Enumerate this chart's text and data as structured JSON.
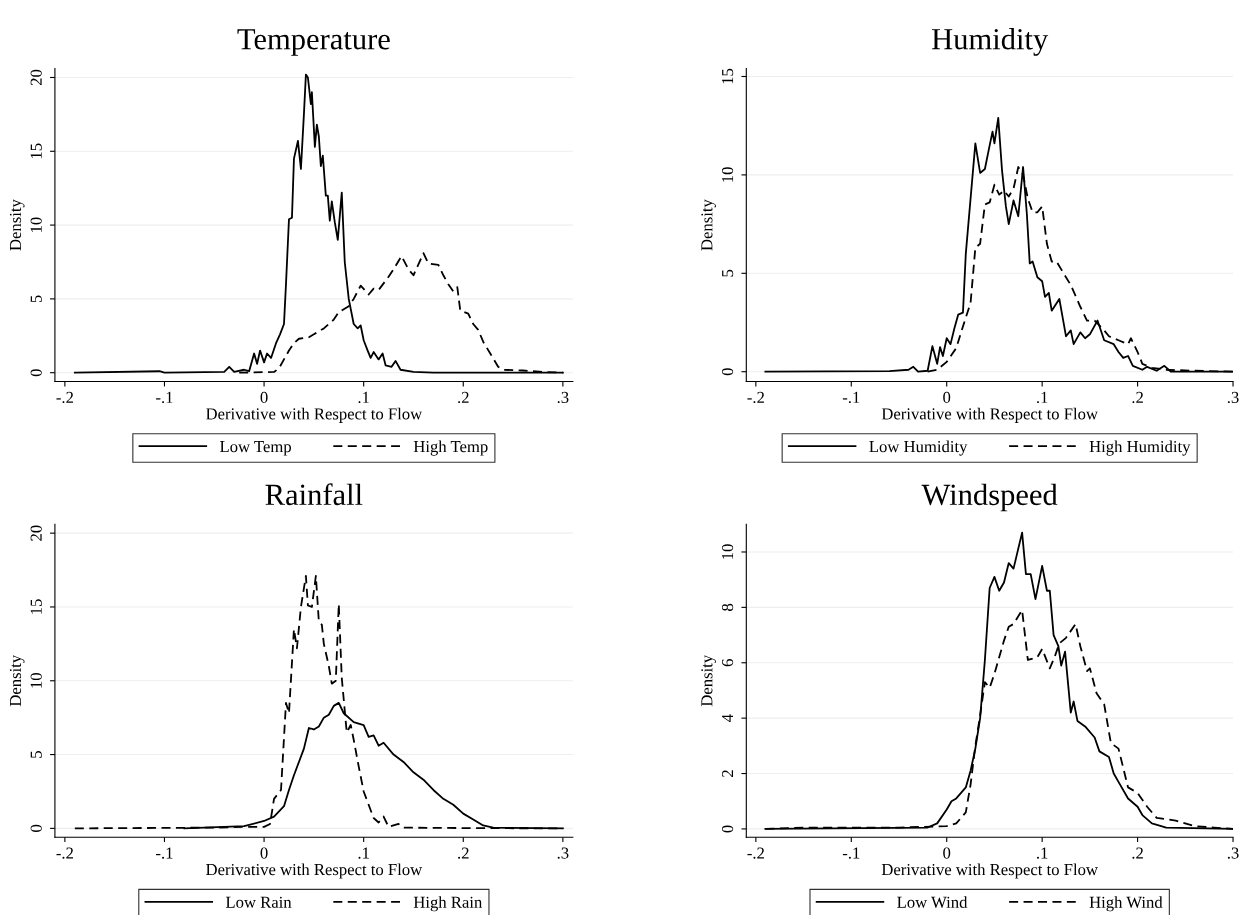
{
  "chart_data": [
    {
      "type": "line",
      "title": "Temperature",
      "xlabel": "Derivative with Respect to Flow",
      "ylabel": "Density",
      "xlim": [
        -0.21,
        0.31
      ],
      "ylim": [
        -0.6,
        20.6
      ],
      "xticks": [
        {
          "value": -0.2,
          "label": "-.2"
        },
        {
          "value": -0.1,
          "label": "-.1"
        },
        0,
        {
          "value": 0.1,
          "label": ".1"
        },
        {
          "value": 0.2,
          "label": ".2"
        },
        {
          "value": 0.3,
          "label": ".3"
        }
      ],
      "yticks": [
        0,
        5,
        10,
        15,
        20
      ],
      "grid": "y",
      "legend": "bottom",
      "series": [
        {
          "name": "Low Temp",
          "color": "#000000",
          "line_style": "solid",
          "x": [
            -0.19,
            -0.105,
            -0.1,
            -0.04,
            -0.035,
            -0.03,
            -0.02,
            -0.015,
            -0.01,
            -0.007,
            -0.004,
            0,
            0.003,
            0.007,
            0.012,
            0.016,
            0.02,
            0.022,
            0.025,
            0.028,
            0.03,
            0.034,
            0.037,
            0.04,
            0.042,
            0.044,
            0.047,
            0.048,
            0.051,
            0.053,
            0.055,
            0.057,
            0.059,
            0.062,
            0.064,
            0.066,
            0.068,
            0.071,
            0.074,
            0.078,
            0.081,
            0.085,
            0.09,
            0.094,
            0.097,
            0.1,
            0.104,
            0.107,
            0.11,
            0.115,
            0.119,
            0.122,
            0.128,
            0.132,
            0.137,
            0.15,
            0.17,
            0.3
          ],
          "values": [
            0,
            0.1,
            0,
            0.05,
            0.4,
            0.05,
            0.2,
            0.1,
            1.3,
            0.6,
            1.5,
            0.7,
            1.3,
            1.0,
            2.0,
            2.6,
            3.3,
            6,
            10.4,
            10.5,
            14.5,
            15.7,
            13.8,
            17.5,
            20.2,
            20.0,
            18.2,
            19,
            15.3,
            16.8,
            16,
            14,
            14.7,
            12,
            12,
            10.3,
            11.6,
            10.2,
            9,
            12.2,
            7.5,
            5,
            3.3,
            3.0,
            3.2,
            2.2,
            1.5,
            1.0,
            1.4,
            0.9,
            1.3,
            0.5,
            0.4,
            0.8,
            0.2,
            0.05,
            0,
            0
          ]
        },
        {
          "name": "High Temp",
          "color": "#000000",
          "line_style": "dashed",
          "x": [
            -0.025,
            0.01,
            0.015,
            0.025,
            0.03,
            0.035,
            0.045,
            0.05,
            0.06,
            0.07,
            0.075,
            0.085,
            0.09,
            0.097,
            0.105,
            0.11,
            0.115,
            0.125,
            0.13,
            0.138,
            0.145,
            0.15,
            0.16,
            0.165,
            0.175,
            0.18,
            0.185,
            0.19,
            0.194,
            0.197,
            0.205,
            0.21,
            0.215,
            0.22,
            0.228,
            0.235,
            0.24,
            0.26,
            0.28,
            0.3
          ],
          "values": [
            0,
            0.05,
            0.3,
            1.5,
            2.0,
            2.3,
            2.4,
            2.6,
            3.0,
            3.6,
            4.1,
            4.5,
            5,
            5.9,
            5.3,
            5.7,
            5.6,
            6.5,
            7.0,
            7.9,
            7.0,
            6.6,
            8.1,
            7.4,
            7.3,
            6.6,
            6.0,
            5.5,
            5.8,
            4.2,
            4.0,
            3.3,
            2.9,
            2.1,
            1.2,
            0.4,
            0.2,
            0.15,
            0.05,
            0
          ]
        }
      ]
    },
    {
      "type": "line",
      "title": "Humidity",
      "xlabel": "Derivative with Respect to Flow",
      "ylabel": "Density",
      "xlim": [
        -0.21,
        0.3
      ],
      "ylim": [
        -0.5,
        15.4
      ],
      "xticks": [
        {
          "value": -0.2,
          "label": "-.2"
        },
        {
          "value": -0.1,
          "label": "-.1"
        },
        0,
        {
          "value": 0.1,
          "label": ".1"
        },
        {
          "value": 0.2,
          "label": ".2"
        },
        {
          "value": 0.3,
          "label": ".3"
        }
      ],
      "yticks": [
        0,
        5,
        10,
        15
      ],
      "grid": "y",
      "legend": "bottom",
      "series": [
        {
          "name": "Low Humidity",
          "color": "#000000",
          "line_style": "solid",
          "x": [
            -0.19,
            -0.06,
            -0.04,
            -0.035,
            -0.03,
            -0.02,
            -0.015,
            -0.01,
            -0.007,
            -0.004,
            0,
            0.004,
            0.008,
            0.012,
            0.017,
            0.02,
            0.03,
            0.035,
            0.04,
            0.045,
            0.048,
            0.05,
            0.054,
            0.058,
            0.062,
            0.065,
            0.07,
            0.075,
            0.08,
            0.084,
            0.087,
            0.09,
            0.095,
            0.1,
            0.103,
            0.107,
            0.11,
            0.118,
            0.125,
            0.13,
            0.133,
            0.14,
            0.145,
            0.15,
            0.158,
            0.165,
            0.175,
            0.18,
            0.185,
            0.19,
            0.195,
            0.205,
            0.21,
            0.22,
            0.228,
            0.235,
            0.3
          ],
          "values": [
            0,
            0.03,
            0.1,
            0.25,
            0,
            0.05,
            1.3,
            0.4,
            1.25,
            0.8,
            1.7,
            1.4,
            2.2,
            2.9,
            3.0,
            6,
            11.6,
            10.1,
            10.3,
            11.5,
            12.2,
            11.6,
            12.9,
            10.2,
            8.4,
            7.5,
            8.7,
            7.9,
            10.4,
            8,
            5.5,
            5.6,
            4.8,
            4.6,
            3.8,
            4.0,
            3.1,
            3.7,
            1.8,
            2.1,
            1.4,
            2.0,
            1.7,
            1.9,
            2.6,
            1.6,
            1.4,
            1.0,
            0.7,
            0.8,
            0.3,
            0.1,
            0.25,
            0.05,
            0.3,
            0,
            0
          ]
        },
        {
          "name": "High Humidity",
          "color": "#000000",
          "line_style": "dashed",
          "x": [
            -0.02,
            -0.01,
            0,
            0.01,
            0.017,
            0.025,
            0.03,
            0.035,
            0.04,
            0.045,
            0.05,
            0.055,
            0.06,
            0.065,
            0.07,
            0.075,
            0.08,
            0.085,
            0.09,
            0.095,
            0.1,
            0.105,
            0.11,
            0.115,
            0.12,
            0.13,
            0.14,
            0.147,
            0.155,
            0.165,
            0.17,
            0.18,
            0.19,
            0.193,
            0.2,
            0.205,
            0.215,
            0.23,
            0.26,
            0.3
          ],
          "values": [
            0,
            0.1,
            0.5,
            1.2,
            2.3,
            3.5,
            6.3,
            6.5,
            8.5,
            8.6,
            9.5,
            9.0,
            9.2,
            8.9,
            9.3,
            10.4,
            10.0,
            8.8,
            8.1,
            8.1,
            8.4,
            6.5,
            5.6,
            5.6,
            5.2,
            4.4,
            3.3,
            2.6,
            2.6,
            2.1,
            1.8,
            1.6,
            1.4,
            1.7,
            1.0,
            0.4,
            0.2,
            0.1,
            0.05,
            0
          ]
        }
      ]
    },
    {
      "type": "line",
      "title": "Rainfall",
      "xlabel": "Derivative with Respect to Flow",
      "ylabel": "Density",
      "xlim": [
        -0.21,
        0.31
      ],
      "ylim": [
        -0.6,
        20.6
      ],
      "xticks": [
        {
          "value": -0.2,
          "label": "-.2"
        },
        {
          "value": -0.1,
          "label": "-.1"
        },
        0,
        {
          "value": 0.1,
          "label": ".1"
        },
        {
          "value": 0.2,
          "label": ".2"
        },
        {
          "value": 0.3,
          "label": ".3"
        }
      ],
      "yticks": [
        0,
        5,
        10,
        15,
        20
      ],
      "grid": "y",
      "legend": "bottom",
      "series": [
        {
          "name": "Low Rain",
          "color": "#000000",
          "line_style": "solid",
          "x": [
            -0.08,
            -0.02,
            0,
            0.01,
            0.02,
            0.025,
            0.03,
            0.035,
            0.04,
            0.045,
            0.05,
            0.055,
            0.06,
            0.065,
            0.07,
            0.075,
            0.08,
            0.09,
            0.1,
            0.105,
            0.11,
            0.115,
            0.12,
            0.13,
            0.14,
            0.15,
            0.16,
            0.17,
            0.18,
            0.19,
            0.2,
            0.21,
            0.22,
            0.23,
            0.3
          ],
          "values": [
            0,
            0.15,
            0.5,
            0.8,
            1.5,
            2.6,
            3.6,
            4.5,
            5.4,
            6.8,
            6.7,
            6.9,
            7.5,
            7.7,
            8.3,
            8.5,
            7.8,
            7.2,
            7.0,
            6.2,
            6.3,
            5.6,
            5.8,
            5.0,
            4.5,
            3.8,
            3.3,
            2.6,
            2.0,
            1.6,
            1.0,
            0.6,
            0.2,
            0.05,
            0
          ]
        },
        {
          "name": "High Rain",
          "color": "#000000",
          "line_style": "dashed",
          "x": [
            -0.19,
            -0.05,
            -0.02,
            0,
            0.006,
            0.01,
            0.017,
            0.022,
            0.025,
            0.03,
            0.033,
            0.037,
            0.042,
            0.044,
            0.048,
            0.052,
            0.055,
            0.058,
            0.06,
            0.065,
            0.068,
            0.072,
            0.075,
            0.078,
            0.083,
            0.087,
            0.09,
            0.095,
            0.1,
            0.105,
            0.11,
            0.115,
            0.12,
            0.125,
            0.135,
            0.14,
            0.2,
            0.3
          ],
          "values": [
            0,
            0.05,
            0.1,
            0.1,
            0.3,
            2,
            2.6,
            8.5,
            7.8,
            13.5,
            12.2,
            15,
            17.1,
            15.1,
            15.0,
            17.1,
            14,
            13.8,
            12.5,
            11,
            9.8,
            10.0,
            15.2,
            10.2,
            6.5,
            7.0,
            6.0,
            4.2,
            2.5,
            1.6,
            0.7,
            0.4,
            0.8,
            0.1,
            0.3,
            0.05,
            0.02,
            0
          ]
        }
      ]
    },
    {
      "type": "line",
      "title": "Windspeed",
      "xlabel": "Derivative with Respect to Flow",
      "ylabel": "Density",
      "xlim": [
        -0.21,
        0.3
      ],
      "ylim": [
        -0.3,
        11
      ],
      "xticks": [
        {
          "value": -0.2,
          "label": "-.2"
        },
        {
          "value": -0.1,
          "label": "-.1"
        },
        0,
        {
          "value": 0.1,
          "label": ".1"
        },
        {
          "value": 0.2,
          "label": ".2"
        },
        {
          "value": 0.3,
          "label": ".3"
        }
      ],
      "yticks": [
        0,
        2,
        4,
        6,
        8,
        10
      ],
      "grid": "y",
      "legend": "bottom",
      "series": [
        {
          "name": "Low Wind",
          "color": "#000000",
          "line_style": "solid",
          "x": [
            -0.19,
            -0.02,
            -0.01,
            0,
            0.005,
            0.01,
            0.015,
            0.02,
            0.025,
            0.03,
            0.035,
            0.04,
            0.045,
            0.05,
            0.055,
            0.06,
            0.065,
            0.07,
            0.079,
            0.083,
            0.088,
            0.093,
            0.1,
            0.105,
            0.108,
            0.112,
            0.117,
            0.12,
            0.124,
            0.13,
            0.133,
            0.137,
            0.145,
            0.155,
            0.16,
            0.17,
            0.175,
            0.18,
            0.19,
            0.2,
            0.205,
            0.215,
            0.23,
            0.3
          ],
          "values": [
            0,
            0.05,
            0.2,
            0.7,
            1.0,
            1.1,
            1.3,
            1.5,
            2.1,
            2.9,
            4.0,
            6.1,
            8.7,
            9.1,
            8.6,
            8.9,
            9.6,
            9.4,
            10.7,
            9.2,
            9.2,
            8.3,
            9.5,
            8.6,
            8.6,
            7.0,
            6.6,
            5.9,
            6.4,
            4.2,
            4.6,
            3.9,
            3.7,
            3.3,
            2.8,
            2.6,
            2.0,
            1.7,
            1.1,
            0.8,
            0.5,
            0.2,
            0.05,
            0
          ]
        },
        {
          "name": "High Wind",
          "color": "#000000",
          "line_style": "dashed",
          "x": [
            -0.19,
            -0.15,
            -0.05,
            0,
            0.01,
            0.02,
            0.025,
            0.03,
            0.035,
            0.04,
            0.045,
            0.05,
            0.06,
            0.065,
            0.07,
            0.079,
            0.085,
            0.095,
            0.1,
            0.108,
            0.113,
            0.118,
            0.125,
            0.135,
            0.14,
            0.147,
            0.15,
            0.157,
            0.165,
            0.172,
            0.18,
            0.19,
            0.2,
            0.21,
            0.22,
            0.24,
            0.26,
            0.28,
            0.3
          ],
          "values": [
            0,
            0.05,
            0.05,
            0.1,
            0.2,
            0.6,
            1.6,
            3.0,
            4.1,
            5.3,
            5.1,
            5.6,
            6.8,
            7.3,
            7.4,
            7.9,
            6.1,
            6.2,
            6.5,
            5.8,
            6.2,
            6.7,
            6.9,
            7.4,
            6.6,
            5.7,
            5.8,
            4.9,
            4.5,
            3.1,
            2.9,
            1.5,
            1.3,
            0.8,
            0.4,
            0.3,
            0.1,
            0.05,
            0
          ]
        }
      ]
    }
  ]
}
